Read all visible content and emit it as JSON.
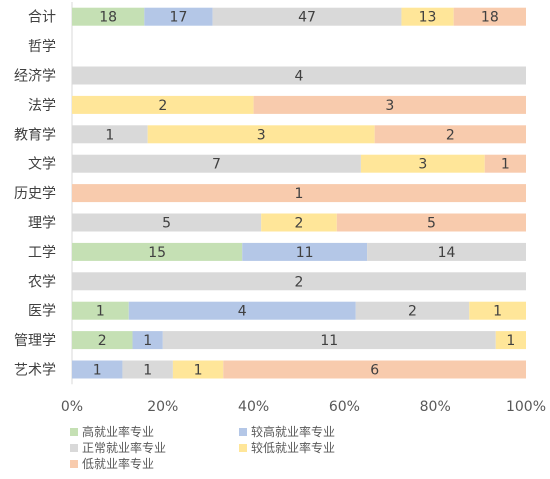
{
  "chart_data": {
    "type": "bar",
    "orientation": "horizontal",
    "stacked": "percent",
    "categories": [
      "合计",
      "哲学",
      "经济学",
      "法学",
      "教育学",
      "文学",
      "历史学",
      "理学",
      "工学",
      "农学",
      "医学",
      "管理学",
      "艺术学"
    ],
    "series": [
      {
        "name": "高就业率专业",
        "color": "#c5e0b4",
        "values": [
          18,
          0,
          0,
          0,
          0,
          0,
          0,
          0,
          15,
          0,
          1,
          2,
          0
        ]
      },
      {
        "name": "较高就业率专业",
        "color": "#b4c7e7",
        "values": [
          17,
          0,
          0,
          0,
          0,
          0,
          0,
          0,
          11,
          0,
          4,
          1,
          1
        ]
      },
      {
        "name": "正常就业率专业",
        "color": "#d9d9d9",
        "values": [
          47,
          0,
          4,
          0,
          1,
          7,
          0,
          5,
          14,
          2,
          2,
          11,
          1
        ]
      },
      {
        "name": "较低就业率专业",
        "color": "#ffe699",
        "values": [
          13,
          0,
          0,
          2,
          3,
          3,
          0,
          2,
          0,
          0,
          1,
          1,
          1
        ]
      },
      {
        "name": "低就业率专业",
        "color": "#f8cbad",
        "values": [
          18,
          0,
          0,
          3,
          2,
          1,
          1,
          5,
          0,
          0,
          0,
          0,
          6
        ]
      }
    ],
    "xlim": [
      0,
      100
    ],
    "x_ticks": [
      "0%",
      "20%",
      "40%",
      "60%",
      "80%",
      "100%"
    ],
    "legend_position": "bottom"
  }
}
